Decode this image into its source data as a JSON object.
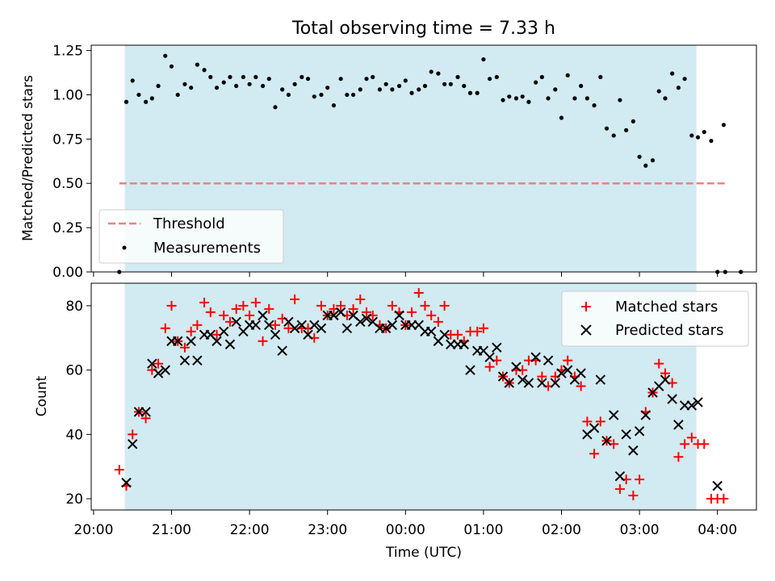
{
  "chart_data": [
    {
      "type": "scatter",
      "title": "Total observing time = 7.33 h",
      "ylabel": "Matched/Predicted stars",
      "xlabel": "",
      "xlim_hours": [
        19.97,
        28.5
      ],
      "ylim": [
        0,
        1.28
      ],
      "yticks": [
        "0.00",
        "0.25",
        "0.50",
        "0.75",
        "1.00",
        "1.25"
      ],
      "ytick_values": [
        0,
        0.25,
        0.5,
        0.75,
        1.0,
        1.25
      ],
      "shaded_span": [
        20.4,
        27.73
      ],
      "shade_color": "#add8e6",
      "threshold": {
        "name": "Threshold",
        "value": 0.5,
        "x_range": [
          20.33,
          28.1
        ],
        "color": "#f08080"
      },
      "legend": {
        "placement": "lower-left",
        "entries": [
          "Threshold",
          "Measurements"
        ]
      },
      "series": [
        {
          "name": "Measurements",
          "color": "#000000",
          "x": [
            20.33,
            20.42,
            20.5,
            20.58,
            20.67,
            20.75,
            20.83,
            20.92,
            21.0,
            21.08,
            21.17,
            21.25,
            21.33,
            21.42,
            21.5,
            21.58,
            21.67,
            21.75,
            21.83,
            21.92,
            22.0,
            22.08,
            22.17,
            22.25,
            22.33,
            22.42,
            22.5,
            22.58,
            22.67,
            22.75,
            22.83,
            22.92,
            23.0,
            23.08,
            23.17,
            23.25,
            23.33,
            23.42,
            23.5,
            23.58,
            23.67,
            23.75,
            23.83,
            23.92,
            24.0,
            24.08,
            24.17,
            24.25,
            24.33,
            24.42,
            24.5,
            24.58,
            24.67,
            24.75,
            24.83,
            24.92,
            25.0,
            25.08,
            25.17,
            25.25,
            25.33,
            25.42,
            25.5,
            25.58,
            25.67,
            25.75,
            25.83,
            25.92,
            26.0,
            26.08,
            26.17,
            26.25,
            26.33,
            26.42,
            26.5,
            26.58,
            26.67,
            26.75,
            26.83,
            26.92,
            27.0,
            27.08,
            27.17,
            27.25,
            27.33,
            27.42,
            27.5,
            27.58,
            27.67,
            27.75,
            27.83,
            27.92,
            28.0,
            28.08
          ],
          "y": [
            0.0,
            0.96,
            1.08,
            1.0,
            0.96,
            0.98,
            1.05,
            1.22,
            1.16,
            1.0,
            1.06,
            1.04,
            1.17,
            1.14,
            1.1,
            1.04,
            1.07,
            1.1,
            1.05,
            1.1,
            1.06,
            1.1,
            1.05,
            1.09,
            0.93,
            1.03,
            1.0,
            1.06,
            1.1,
            1.09,
            0.99,
            1.0,
            1.04,
            0.94,
            1.09,
            1.0,
            1.0,
            1.03,
            1.09,
            1.1,
            1.03,
            1.06,
            1.03,
            1.05,
            1.08,
            1.01,
            1.03,
            1.05,
            1.13,
            1.12,
            1.06,
            1.06,
            1.1,
            1.05,
            1.01,
            1.01,
            1.2,
            1.09,
            1.1,
            0.97,
            0.99,
            0.98,
            0.99,
            0.96,
            1.07,
            1.1,
            0.98,
            1.03,
            0.87,
            1.11,
            0.98,
            1.05,
            0.98,
            0.94,
            1.1,
            0.81,
            0.77,
            0.97,
            0.8,
            0.85,
            0.65,
            0.6,
            0.63,
            1.02,
            0.98,
            1.12,
            1.04,
            1.09,
            0.77,
            0.76,
            0.79,
            0.74,
            0.0,
            0.83
          ]
        }
      ],
      "extra_points": {
        "x": [
          28.1,
          28.3
        ],
        "y": [
          0.0,
          0.0
        ]
      }
    },
    {
      "type": "scatter",
      "title": "",
      "ylabel": "Count",
      "xlabel": "Time (UTC)",
      "xlim_hours": [
        19.97,
        28.5
      ],
      "ylim": [
        16.5,
        87
      ],
      "yticks": [
        "20",
        "40",
        "60",
        "80"
      ],
      "ytick_values": [
        20,
        40,
        60,
        80
      ],
      "xticks": [
        "20:00",
        "21:00",
        "22:00",
        "23:00",
        "00:00",
        "01:00",
        "02:00",
        "03:00",
        "04:00"
      ],
      "xtick_values": [
        20,
        21,
        22,
        23,
        24,
        25,
        26,
        27,
        28
      ],
      "shaded_span": [
        20.4,
        27.73
      ],
      "shade_color": "#add8e6",
      "legend": {
        "placement": "top-right",
        "entries": [
          "Matched stars",
          "Predicted stars"
        ]
      },
      "series": [
        {
          "name": "Matched stars",
          "marker": "+",
          "color": "#ff0000",
          "x": [
            20.33,
            20.42,
            20.5,
            20.58,
            20.67,
            20.75,
            20.83,
            20.92,
            21.0,
            21.08,
            21.17,
            21.25,
            21.33,
            21.42,
            21.5,
            21.58,
            21.67,
            21.75,
            21.83,
            21.92,
            22.0,
            22.08,
            22.17,
            22.25,
            22.33,
            22.42,
            22.5,
            22.58,
            22.67,
            22.75,
            22.83,
            22.92,
            23.0,
            23.08,
            23.17,
            23.25,
            23.33,
            23.42,
            23.5,
            23.58,
            23.67,
            23.75,
            23.83,
            23.92,
            24.0,
            24.08,
            24.17,
            24.25,
            24.33,
            24.42,
            24.5,
            24.58,
            24.67,
            24.75,
            24.83,
            24.92,
            25.0,
            25.08,
            25.17,
            25.25,
            25.33,
            25.42,
            25.5,
            25.58,
            25.67,
            25.75,
            25.83,
            25.92,
            26.0,
            26.08,
            26.17,
            26.25,
            26.33,
            26.42,
            26.5,
            26.58,
            26.67,
            26.75,
            26.83,
            26.92,
            27.0,
            27.08,
            27.17,
            27.25,
            27.33,
            27.42,
            27.5,
            27.58,
            27.67,
            27.75,
            27.83,
            27.92,
            28.0,
            28.08
          ],
          "y": [
            29,
            24,
            40,
            47,
            45,
            60,
            62,
            73,
            80,
            69,
            67,
            72,
            74,
            81,
            78,
            71,
            77,
            75,
            79,
            80,
            77,
            81,
            69,
            79,
            74,
            76,
            73,
            82,
            73,
            73,
            70,
            80,
            77,
            79,
            80,
            77,
            79,
            82,
            78,
            77,
            74,
            73,
            80,
            78,
            74,
            78,
            84,
            80,
            77,
            75,
            80,
            71,
            71,
            69,
            72,
            72,
            73,
            61,
            63,
            58,
            56,
            60,
            60,
            63,
            63,
            58,
            55,
            58,
            60,
            63,
            58,
            55,
            44,
            34,
            44,
            38,
            37,
            23,
            26,
            21,
            26,
            47,
            53,
            62,
            59,
            56,
            33,
            37,
            39,
            37,
            37,
            20,
            20,
            20
          ],
          "marker_style": "plus"
        },
        {
          "name": "Predicted stars",
          "marker": "x",
          "color": "#000000",
          "x": [
            20.42,
            20.5,
            20.58,
            20.67,
            20.75,
            20.83,
            20.92,
            21.0,
            21.08,
            21.17,
            21.25,
            21.33,
            21.42,
            21.5,
            21.58,
            21.67,
            21.75,
            21.83,
            21.92,
            22.0,
            22.08,
            22.17,
            22.25,
            22.33,
            22.42,
            22.5,
            22.58,
            22.67,
            22.75,
            22.83,
            22.92,
            23.0,
            23.08,
            23.17,
            23.25,
            23.33,
            23.42,
            23.5,
            23.58,
            23.67,
            23.75,
            23.83,
            23.92,
            24.0,
            24.08,
            24.17,
            24.25,
            24.33,
            24.42,
            24.5,
            24.58,
            24.67,
            24.75,
            24.83,
            24.92,
            25.0,
            25.08,
            25.17,
            25.25,
            25.33,
            25.42,
            25.5,
            25.58,
            25.67,
            25.75,
            25.83,
            25.92,
            26.0,
            26.08,
            26.17,
            26.25,
            26.33,
            26.42,
            26.5,
            26.58,
            26.67,
            26.75,
            26.83,
            26.92,
            27.0,
            27.08,
            27.17,
            27.25,
            27.33,
            27.42,
            27.5,
            27.58,
            27.67,
            27.75,
            28.0
          ],
          "y": [
            25,
            37,
            47,
            47,
            62,
            59,
            60,
            69,
            69,
            63,
            69,
            63,
            71,
            71,
            69,
            72,
            68,
            75,
            72,
            74,
            74,
            77,
            74,
            71,
            66,
            75,
            73,
            74,
            71,
            74,
            73,
            77,
            77,
            78,
            73,
            77,
            75,
            76,
            75,
            73,
            73,
            74,
            77,
            74,
            74,
            74,
            72,
            72,
            69,
            71,
            68,
            68,
            68,
            60,
            66,
            66,
            64,
            67,
            58,
            56,
            61,
            57,
            56,
            64,
            56,
            63,
            56,
            59,
            60,
            57,
            59,
            40,
            42,
            57,
            38,
            46,
            27,
            40,
            35,
            41,
            46,
            53,
            55,
            57,
            51,
            43,
            49,
            49,
            50,
            24
          ],
          "marker_style": "cross"
        }
      ]
    }
  ]
}
